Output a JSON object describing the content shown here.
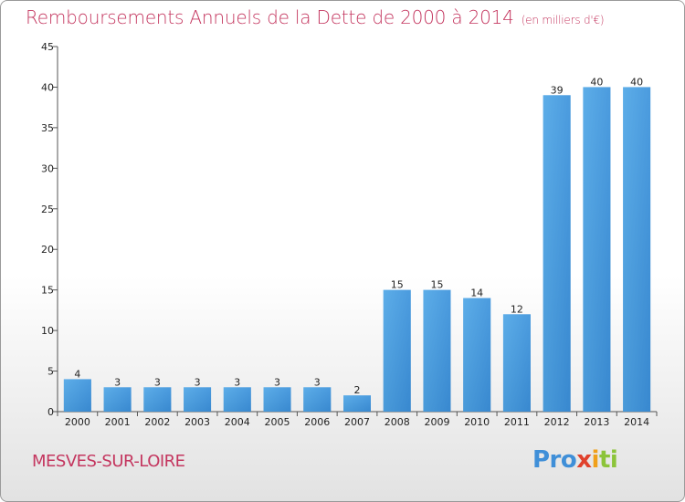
{
  "chart_data": {
    "type": "bar",
    "title": "Remboursements Annuels de la Dette de 2000 à 2014",
    "subtitle": "(en milliers d'€)",
    "xlabel": "",
    "ylabel": "",
    "categories": [
      "2000",
      "2001",
      "2002",
      "2003",
      "2004",
      "2005",
      "2006",
      "2007",
      "2008",
      "2009",
      "2010",
      "2011",
      "2012",
      "2013",
      "2014"
    ],
    "values": [
      4,
      3,
      3,
      3,
      3,
      3,
      3,
      2,
      15,
      15,
      14,
      12,
      39,
      40,
      40
    ],
    "ylim": [
      0,
      45
    ],
    "yticks": [
      0,
      5,
      10,
      15,
      20,
      25,
      30,
      35,
      40,
      45
    ],
    "grid": false,
    "bar_color": "#4d9ad9"
  },
  "footer": {
    "commune": "MESVES-SUR-LOIRE",
    "logo": [
      "Pro",
      "x",
      "i",
      "ti"
    ]
  }
}
